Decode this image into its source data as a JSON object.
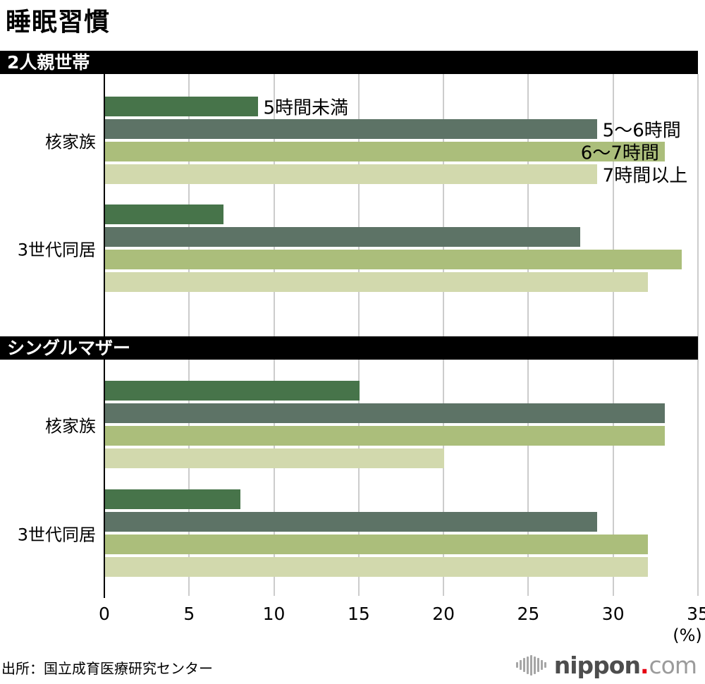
{
  "source": "出所：国立成育医療研究センター",
  "logo": {
    "brand": "nippon",
    "dot": ".",
    "tld": "com"
  },
  "chart_data": {
    "type": "bar",
    "orientation": "horizontal",
    "title": "睡眠習慣",
    "xlim": [
      0,
      35
    ],
    "x_ticks": [
      0,
      5,
      10,
      15,
      20,
      25,
      30,
      35
    ],
    "x_unit": "(%)",
    "grid": true,
    "legend_position": "inline-first-group",
    "series_labels": [
      "5時間未満",
      "5〜6時間",
      "6〜7時間",
      "7時間以上"
    ],
    "series_colors": [
      "#47744a",
      "#5d7366",
      "#abbe7b",
      "#d2d9ad"
    ],
    "series_label_placement": [
      "outside",
      "outside",
      "inside",
      "outside"
    ],
    "sections": [
      {
        "banner": "2人親世帯",
        "groups": [
          {
            "label": "核家族",
            "values": [
              9,
              29,
              33,
              29
            ]
          },
          {
            "label": "3世代同居",
            "values": [
              7,
              28,
              34,
              32
            ]
          }
        ]
      },
      {
        "banner": "シングルマザー",
        "groups": [
          {
            "label": "核家族",
            "values": [
              15,
              33,
              33,
              20
            ]
          },
          {
            "label": "3世代同居",
            "values": [
              8,
              29,
              32,
              32
            ]
          }
        ]
      }
    ]
  }
}
